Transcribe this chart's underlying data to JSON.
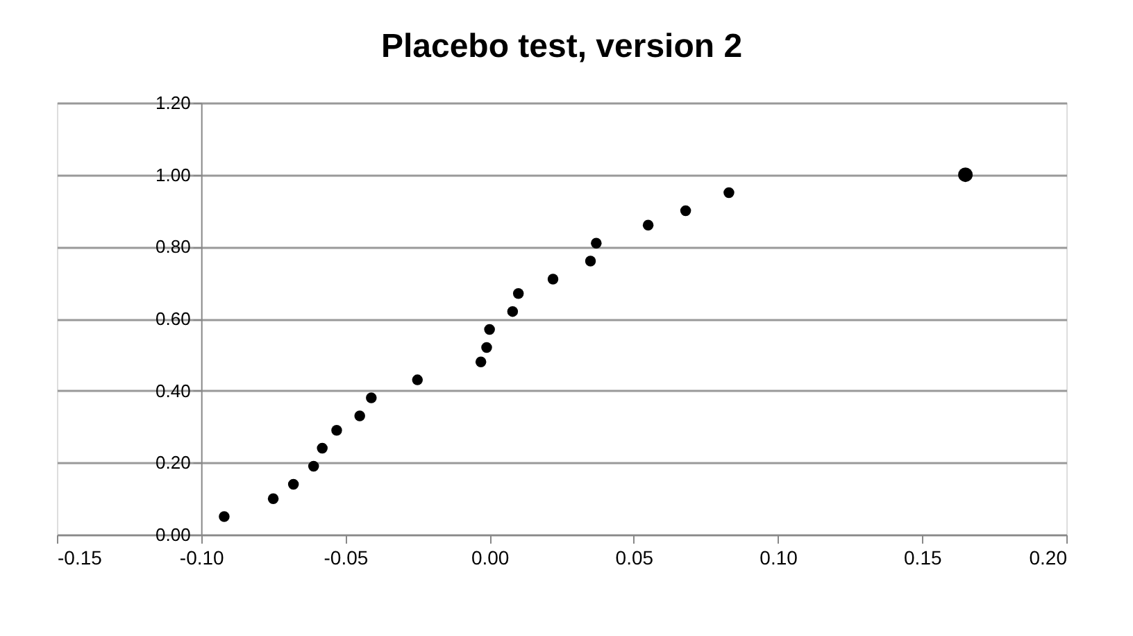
{
  "chart_data": {
    "type": "scatter",
    "title": "Placebo test, version 2",
    "xlim": [
      -0.15,
      0.2
    ],
    "xticks": [
      {
        "value": -0.15,
        "label": "-0.15"
      },
      {
        "value": -0.1,
        "label": "-0.10"
      },
      {
        "value": -0.05,
        "label": "-0.05"
      },
      {
        "value": 0,
        "label": "0.00"
      },
      {
        "value": 0.05,
        "label": "0.05"
      },
      {
        "value": 0.1,
        "label": "0.10"
      },
      {
        "value": 0.15,
        "label": "0.15"
      },
      {
        "value": 0.2,
        "label": "0.20"
      }
    ],
    "ylim": [
      0,
      1.2
    ],
    "yticks": [
      {
        "value": 0,
        "label": "0.00"
      },
      {
        "value": 0.2,
        "label": "0.20"
      },
      {
        "value": 0.4,
        "label": "0.40"
      },
      {
        "value": 0.6,
        "label": "0.60"
      },
      {
        "value": 0.8,
        "label": "0.80"
      },
      {
        "value": 1,
        "label": "1.00"
      },
      {
        "value": 1.2,
        "label": "1.20"
      }
    ],
    "grid": "y",
    "marker": "circle",
    "series": [
      {
        "color": "#000000",
        "x": [
          -0.092,
          -0.075,
          -0.068,
          -0.061,
          -0.058,
          -0.053,
          -0.045,
          -0.041,
          -0.025,
          -0.003,
          -0.001,
          0.0,
          0.008,
          0.01,
          0.022,
          0.035,
          0.037,
          0.055,
          0.068,
          0.083
        ],
        "values": [
          0.05,
          0.1,
          0.14,
          0.19,
          0.24,
          0.29,
          0.33,
          0.38,
          0.43,
          0.48,
          0.52,
          0.57,
          0.62,
          0.67,
          0.71,
          0.76,
          0.81,
          0.86,
          0.9,
          0.95
        ]
      },
      {
        "color": "#000000",
        "x": [
          0.165
        ],
        "values": [
          1.0
        ]
      }
    ]
  }
}
